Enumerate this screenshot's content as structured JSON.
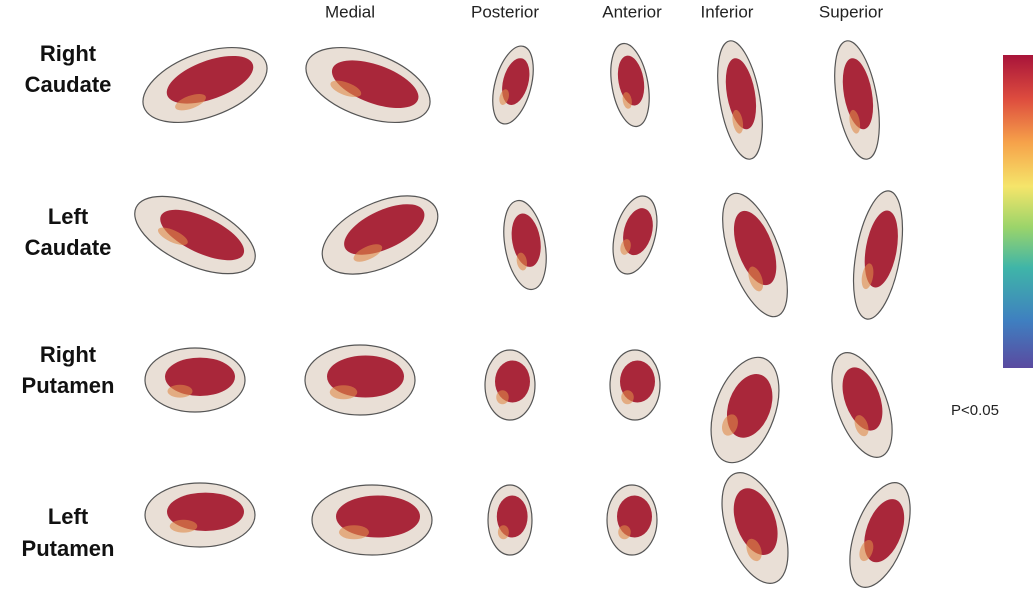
{
  "columns": [
    "Medial",
    "Posterior",
    "Anterior",
    "Inferior",
    "Superior"
  ],
  "rows": [
    [
      "Right",
      "Caudate"
    ],
    [
      "Left",
      "Caudate"
    ],
    [
      "Right",
      "Putamen"
    ],
    [
      "Left",
      "Putamen"
    ]
  ],
  "colorbar_label": "P<0.05"
}
